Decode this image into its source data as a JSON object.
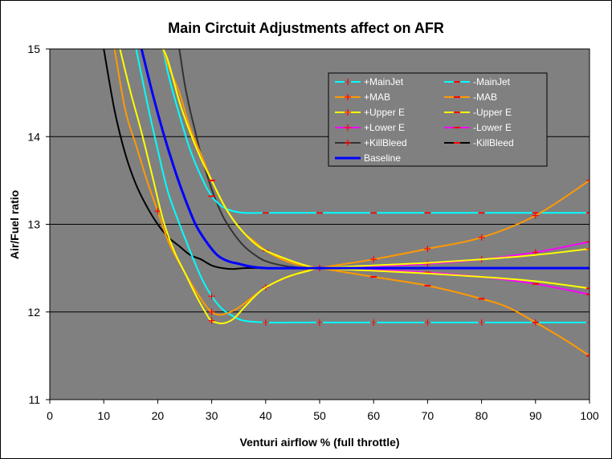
{
  "chart_data": {
    "type": "line",
    "title": "Main Circtuit Adjustments affect on AFR",
    "xlabel": "Venturi airflow % (full throttle)",
    "ylabel": "Air/Fuel ratio",
    "xlim": [
      0,
      100
    ],
    "ylim": [
      11,
      15
    ],
    "x_ticks": [
      "0",
      "10",
      "20",
      "30",
      "40",
      "50",
      "60",
      "70",
      "80",
      "90",
      "100"
    ],
    "y_ticks": [
      "11",
      "12",
      "13",
      "14",
      "15"
    ],
    "plot_background": "#808080",
    "grid": "horizontal",
    "legend_position": "top-right",
    "series": [
      {
        "name": "+MainJet",
        "color": "#00FFFF",
        "marker": "plus",
        "marker_color": "#FF0000",
        "x": [
          16,
          18,
          20,
          22,
          25,
          28,
          30,
          32,
          34,
          36,
          40,
          45,
          50,
          60,
          70,
          80,
          90,
          100
        ],
        "y": [
          15.0,
          14.4,
          13.85,
          13.35,
          12.85,
          12.4,
          12.18,
          12.03,
          11.95,
          11.9,
          11.88,
          11.88,
          11.88,
          11.88,
          11.88,
          11.88,
          11.88,
          11.88
        ],
        "markers_x": [
          30,
          40,
          50,
          60,
          70,
          80,
          90,
          100
        ]
      },
      {
        "name": "-MainJet",
        "color": "#00FFFF",
        "marker": "dash",
        "marker_color": "#FF0000",
        "x": [
          21,
          22,
          24,
          26,
          28,
          30,
          32,
          34,
          36,
          40,
          45,
          50,
          60,
          70,
          80,
          90,
          100
        ],
        "y": [
          15.0,
          14.7,
          14.25,
          13.85,
          13.55,
          13.32,
          13.2,
          13.15,
          13.13,
          13.13,
          13.13,
          13.13,
          13.13,
          13.13,
          13.13,
          13.13,
          13.13
        ],
        "markers_x": [
          30,
          40,
          50,
          60,
          70,
          80,
          90,
          100
        ]
      },
      {
        "name": "+MAB",
        "color": "#FF9900",
        "marker": "plus",
        "marker_color": "#FF0000",
        "x": [
          12,
          14,
          16,
          18,
          20,
          22,
          25,
          28,
          30,
          32,
          35,
          40,
          45,
          50,
          60,
          70,
          80,
          90,
          100
        ],
        "y": [
          15.0,
          14.3,
          13.9,
          13.5,
          13.15,
          12.8,
          12.45,
          12.15,
          12.0,
          11.97,
          12.05,
          12.28,
          12.42,
          12.5,
          12.6,
          12.72,
          12.85,
          13.1,
          13.5
        ],
        "markers_x": [
          20,
          30,
          40,
          50,
          60,
          70,
          80,
          90,
          100
        ]
      },
      {
        "name": "-MAB",
        "color": "#FF9900",
        "marker": "dash",
        "marker_color": "#FF0000",
        "x": [
          21,
          22,
          24,
          26,
          28,
          30,
          32,
          34,
          36,
          38,
          40,
          43,
          46,
          50,
          60,
          70,
          80,
          85,
          90,
          95,
          100
        ],
        "y": [
          15.0,
          14.8,
          14.5,
          14.1,
          13.8,
          13.5,
          13.25,
          13.05,
          12.9,
          12.8,
          12.7,
          12.6,
          12.54,
          12.5,
          12.4,
          12.3,
          12.15,
          12.05,
          11.88,
          11.7,
          11.5
        ],
        "markers_x": [
          30,
          40,
          50,
          60,
          70,
          80,
          90,
          100
        ]
      },
      {
        "name": "+Upper E",
        "color": "#FFFF00",
        "marker": "plus",
        "marker_color": "#FF0000",
        "x": [
          13,
          15,
          17,
          19,
          21,
          23,
          25,
          27,
          29,
          30,
          32,
          34,
          36,
          38,
          40,
          44,
          48,
          50,
          60,
          70,
          80,
          90,
          100
        ],
        "y": [
          15.0,
          14.5,
          14.05,
          13.55,
          13.05,
          12.7,
          12.45,
          12.2,
          11.98,
          11.9,
          11.87,
          11.92,
          12.05,
          12.18,
          12.28,
          12.4,
          12.47,
          12.5,
          12.53,
          12.56,
          12.6,
          12.65,
          12.72
        ],
        "markers_x": [
          30,
          50,
          100
        ]
      },
      {
        "name": "-Upper E",
        "color": "#FFFF00",
        "marker": "dash",
        "marker_color": "#FF0000",
        "x": [
          21,
          22,
          24,
          26,
          28,
          30,
          32,
          34,
          36,
          38,
          40,
          44,
          48,
          50,
          60,
          70,
          80,
          90,
          100
        ],
        "y": [
          15.0,
          14.85,
          14.4,
          14.05,
          13.75,
          13.5,
          13.25,
          13.05,
          12.9,
          12.78,
          12.7,
          12.6,
          12.52,
          12.5,
          12.47,
          12.44,
          12.4,
          12.35,
          12.27
        ],
        "markers_x": [
          30,
          50,
          100
        ]
      },
      {
        "name": "+Lower E",
        "color": "#FF00FF",
        "marker": "plus",
        "marker_color": "#FF0000",
        "x": [
          50,
          60,
          70,
          80,
          90,
          100
        ],
        "y": [
          12.5,
          12.52,
          12.55,
          12.6,
          12.68,
          12.8
        ],
        "markers_x": [
          70,
          80,
          90,
          100
        ]
      },
      {
        "name": "-Lower E",
        "color": "#FF00FF",
        "marker": "dash",
        "marker_color": "#FF0000",
        "x": [
          50,
          60,
          70,
          80,
          90,
          100
        ],
        "y": [
          12.5,
          12.48,
          12.45,
          12.4,
          12.32,
          12.2
        ],
        "markers_x": [
          70,
          80,
          90,
          100
        ]
      },
      {
        "name": "+KillBleed",
        "color": "#333333",
        "marker": "plus",
        "marker_color": "#FF0000",
        "x": [
          24,
          25,
          26,
          27,
          28,
          30,
          32,
          34,
          36,
          38,
          40,
          44,
          48,
          50,
          60,
          70,
          80,
          90,
          100
        ],
        "y": [
          15.0,
          14.6,
          14.3,
          14.05,
          13.8,
          13.4,
          13.1,
          12.9,
          12.75,
          12.65,
          12.58,
          12.52,
          12.5,
          12.5,
          12.5,
          12.5,
          12.5,
          12.5,
          12.5
        ],
        "markers_x": []
      },
      {
        "name": "-KillBleed",
        "color": "#000000",
        "marker": "dash",
        "marker_color": "#FF0000",
        "x": [
          10,
          12,
          14,
          16,
          18,
          20,
          22,
          24,
          26,
          28,
          30,
          32,
          34,
          36,
          40,
          50,
          60,
          70,
          80,
          90,
          100
        ],
        "y": [
          15.0,
          14.3,
          13.8,
          13.45,
          13.2,
          13.0,
          12.85,
          12.75,
          12.65,
          12.6,
          12.53,
          12.5,
          12.49,
          12.5,
          12.5,
          12.5,
          12.5,
          12.5,
          12.5,
          12.5,
          12.5
        ],
        "markers_x": []
      },
      {
        "name": "Baseline",
        "color": "#0000FF",
        "marker": "none",
        "marker_color": "#FF0000",
        "x": [
          17,
          19,
          21,
          23,
          25,
          27,
          29,
          31,
          33,
          35,
          37,
          40,
          45,
          50,
          60,
          70,
          80,
          90,
          100
        ],
        "y": [
          15.0,
          14.5,
          14.05,
          13.65,
          13.3,
          13.0,
          12.8,
          12.65,
          12.58,
          12.55,
          12.52,
          12.5,
          12.5,
          12.5,
          12.5,
          12.5,
          12.5,
          12.5,
          12.5
        ],
        "markers_x": []
      }
    ]
  }
}
